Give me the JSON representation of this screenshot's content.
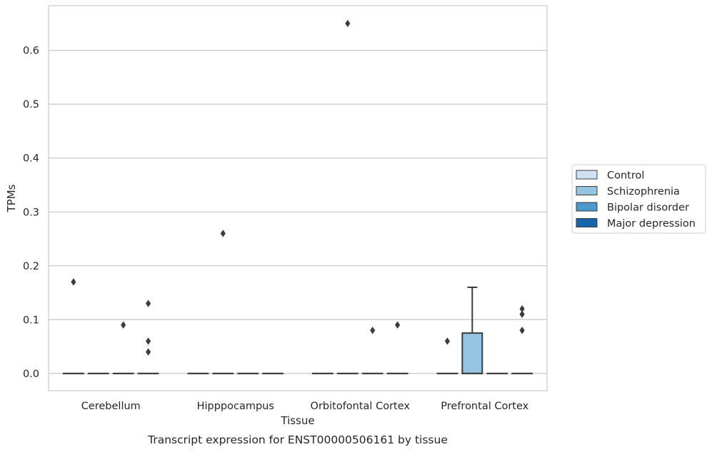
{
  "chart_data": {
    "type": "box",
    "title": "",
    "caption": "Transcript expression for ENST00000506161 by tissue",
    "xlabel": "Tissue",
    "ylabel": "TPMs",
    "ylim": [
      -0.032,
      0.683
    ],
    "yticks": [
      0.0,
      0.1,
      0.2,
      0.3,
      0.4,
      0.5,
      0.6
    ],
    "ytick_labels": [
      "0.0",
      "0.1",
      "0.2",
      "0.3",
      "0.4",
      "0.5",
      "0.6"
    ],
    "grid": "horizontal",
    "legend_position": "right",
    "categories": [
      "Cerebellum",
      "Hipppocampus",
      "Orbitofontal Cortex",
      "Prefrontal Cortex"
    ],
    "series": [
      {
        "name": "Control",
        "color": "#d0e1f2",
        "boxes": [
          {
            "category": "Cerebellum",
            "q1": 0,
            "median": 0,
            "q3": 0,
            "whisker_low": 0,
            "whisker_high": 0,
            "outliers": [
              0.17
            ]
          },
          {
            "category": "Hipppocampus",
            "q1": 0,
            "median": 0,
            "q3": 0,
            "whisker_low": 0,
            "whisker_high": 0,
            "outliers": []
          },
          {
            "category": "Orbitofontal Cortex",
            "q1": 0,
            "median": 0,
            "q3": 0,
            "whisker_low": 0,
            "whisker_high": 0,
            "outliers": []
          },
          {
            "category": "Prefrontal Cortex",
            "q1": 0,
            "median": 0,
            "q3": 0,
            "whisker_low": 0,
            "whisker_high": 0,
            "outliers": [
              0.06
            ]
          }
        ]
      },
      {
        "name": "Schizophrenia",
        "color": "#94c4df",
        "boxes": [
          {
            "category": "Cerebellum",
            "q1": 0,
            "median": 0,
            "q3": 0,
            "whisker_low": 0,
            "whisker_high": 0,
            "outliers": []
          },
          {
            "category": "Hipppocampus",
            "q1": 0,
            "median": 0,
            "q3": 0,
            "whisker_low": 0,
            "whisker_high": 0,
            "outliers": [
              0.26
            ]
          },
          {
            "category": "Orbitofontal Cortex",
            "q1": 0,
            "median": 0,
            "q3": 0,
            "whisker_low": 0,
            "whisker_high": 0,
            "outliers": [
              0.65
            ]
          },
          {
            "category": "Prefrontal Cortex",
            "q1": 0,
            "median": 0,
            "q3": 0.075,
            "whisker_low": 0,
            "whisker_high": 0.16,
            "outliers": []
          }
        ]
      },
      {
        "name": "Bipolar disorder",
        "color": "#4a98c9",
        "boxes": [
          {
            "category": "Cerebellum",
            "q1": 0,
            "median": 0,
            "q3": 0,
            "whisker_low": 0,
            "whisker_high": 0,
            "outliers": [
              0.09
            ]
          },
          {
            "category": "Hipppocampus",
            "q1": 0,
            "median": 0,
            "q3": 0,
            "whisker_low": 0,
            "whisker_high": 0,
            "outliers": []
          },
          {
            "category": "Orbitofontal Cortex",
            "q1": 0,
            "median": 0,
            "q3": 0,
            "whisker_low": 0,
            "whisker_high": 0,
            "outliers": [
              0.08
            ]
          },
          {
            "category": "Prefrontal Cortex",
            "q1": 0,
            "median": 0,
            "q3": 0,
            "whisker_low": 0,
            "whisker_high": 0,
            "outliers": []
          }
        ]
      },
      {
        "name": "Major depression",
        "color": "#1764ab",
        "boxes": [
          {
            "category": "Cerebellum",
            "q1": 0,
            "median": 0,
            "q3": 0,
            "whisker_low": 0,
            "whisker_high": 0,
            "outliers": [
              0.13,
              0.06,
              0.04
            ]
          },
          {
            "category": "Hipppocampus",
            "q1": 0,
            "median": 0,
            "q3": 0,
            "whisker_low": 0,
            "whisker_high": 0,
            "outliers": []
          },
          {
            "category": "Orbitofontal Cortex",
            "q1": 0,
            "median": 0,
            "q3": 0,
            "whisker_low": 0,
            "whisker_high": 0,
            "outliers": [
              0.09
            ]
          },
          {
            "category": "Prefrontal Cortex",
            "q1": 0,
            "median": 0,
            "q3": 0,
            "whisker_low": 0,
            "whisker_high": 0,
            "outliers": [
              0.12,
              0.11,
              0.08
            ]
          }
        ]
      }
    ]
  }
}
